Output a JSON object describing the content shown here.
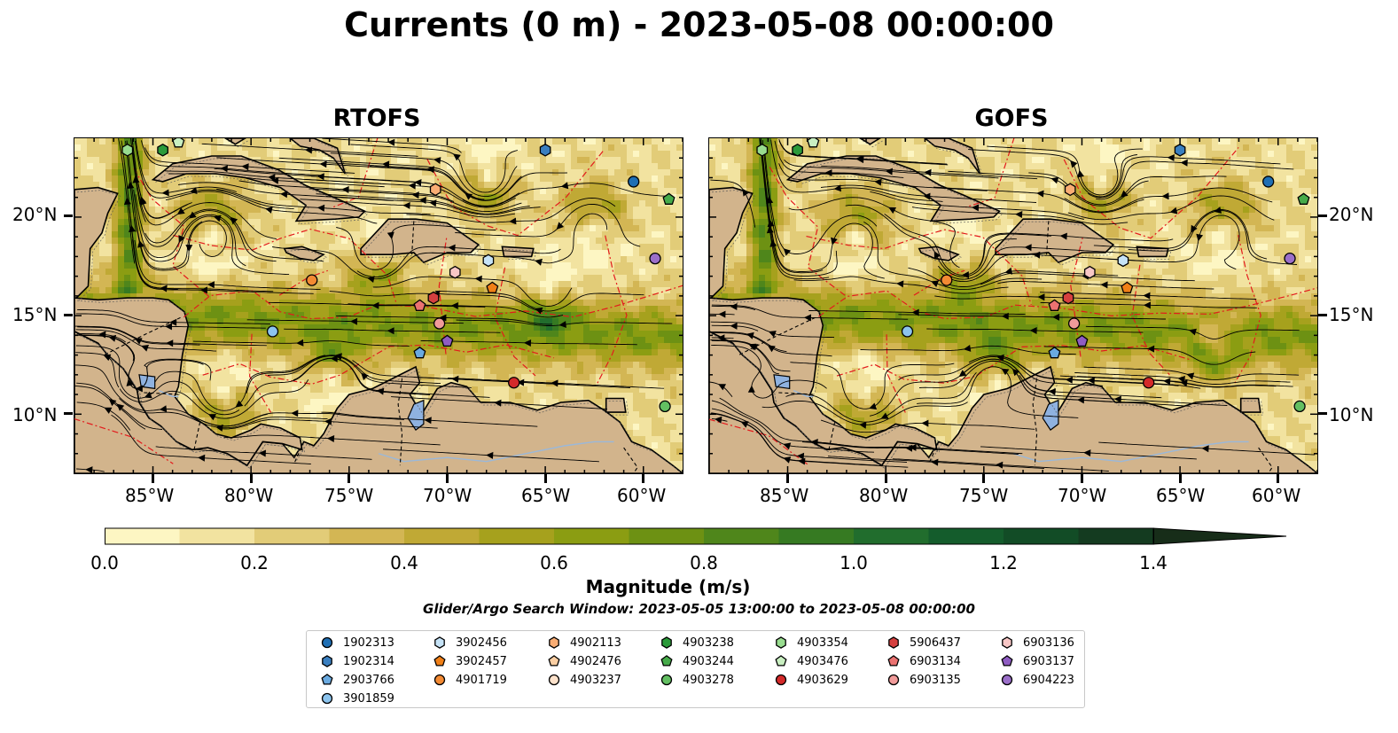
{
  "title": "Currents (0 m) - 2023-05-08 00:00:00",
  "panels": [
    {
      "title": "RTOFS"
    },
    {
      "title": "GOFS"
    }
  ],
  "lat_labels": [
    "20°N",
    "15°N",
    "10°N"
  ],
  "lon_labels": [
    "85°W",
    "80°W",
    "75°W",
    "70°W",
    "65°W",
    "60°W"
  ],
  "colorbar": {
    "label": "Magnitude (m/s)",
    "min": 0.0,
    "max": 1.5,
    "extend": "max",
    "ticks": [
      "0.0",
      "0.2",
      "0.4",
      "0.6",
      "0.8",
      "1.0",
      "1.2",
      "1.4"
    ],
    "colors": [
      "#fdf6c3",
      "#f2e3a0",
      "#e2cc78",
      "#d3b654",
      "#c0a935",
      "#a6a11d",
      "#8b9d12",
      "#6d9113",
      "#4f861b",
      "#367a22",
      "#216d2d",
      "#145c2c",
      "#124c26",
      "#143b20",
      "#172d19"
    ]
  },
  "subtitle": "Glider/Argo Search Window: 2023-05-05 13:00:00 to 2023-05-08 00:00:00",
  "legend": [
    {
      "id": "1902313",
      "shape": "circle",
      "color": "#1f6fb4"
    },
    {
      "id": "1902314",
      "shape": "hexagon",
      "color": "#3a7fc0"
    },
    {
      "id": "2903766",
      "shape": "pentagon",
      "color": "#6aaae0"
    },
    {
      "id": "3901859",
      "shape": "circle",
      "color": "#8cc4ee"
    },
    {
      "id": "3902456",
      "shape": "hexagon",
      "color": "#c6e3f7"
    },
    {
      "id": "3902457",
      "shape": "pentagon",
      "color": "#f07f17"
    },
    {
      "id": "4901719",
      "shape": "circle",
      "color": "#f38a33"
    },
    {
      "id": "4902113",
      "shape": "hexagon",
      "color": "#f9ad74"
    },
    {
      "id": "4902476",
      "shape": "pentagon",
      "color": "#fbcfa3"
    },
    {
      "id": "4903237",
      "shape": "circle",
      "color": "#fde2cb"
    },
    {
      "id": "4903238",
      "shape": "hexagon",
      "color": "#2b9a3a"
    },
    {
      "id": "4903244",
      "shape": "pentagon",
      "color": "#46ab4a"
    },
    {
      "id": "4903278",
      "shape": "circle",
      "color": "#63bf62"
    },
    {
      "id": "4903354",
      "shape": "hexagon",
      "color": "#98dc8f"
    },
    {
      "id": "4903476",
      "shape": "pentagon",
      "color": "#c9efc1"
    },
    {
      "id": "4903629",
      "shape": "circle",
      "color": "#d42a2a"
    },
    {
      "id": "5906437",
      "shape": "hexagon",
      "color": "#d6403f"
    },
    {
      "id": "6903134",
      "shape": "pentagon",
      "color": "#eb7271"
    },
    {
      "id": "6903135",
      "shape": "circle",
      "color": "#f19b9a"
    },
    {
      "id": "6903136",
      "shape": "hexagon",
      "color": "#f8c7c6"
    },
    {
      "id": "6903137",
      "shape": "pentagon",
      "color": "#8f5cc2"
    },
    {
      "id": "6904223",
      "shape": "circle",
      "color": "#9b6fc9"
    }
  ],
  "floats": [
    {
      "id": "4903354",
      "lon": -86.3,
      "lat": 23.4
    },
    {
      "id": "4903238",
      "lon": -84.5,
      "lat": 23.4
    },
    {
      "id": "4903476",
      "lon": -83.7,
      "lat": 23.8
    },
    {
      "id": "1902314",
      "lon": -65.0,
      "lat": 23.4
    },
    {
      "id": "1902313",
      "lon": -60.5,
      "lat": 21.8
    },
    {
      "id": "4903244",
      "lon": -58.7,
      "lat": 20.9
    },
    {
      "id": "4902113",
      "lon": -70.6,
      "lat": 21.4
    },
    {
      "id": "6904223",
      "lon": -59.4,
      "lat": 17.9
    },
    {
      "id": "3902456",
      "lon": -67.9,
      "lat": 17.8
    },
    {
      "id": "6903136",
      "lon": -69.6,
      "lat": 17.2
    },
    {
      "id": "4901719",
      "lon": -76.9,
      "lat": 16.8
    },
    {
      "id": "3902457",
      "lon": -67.7,
      "lat": 16.4
    },
    {
      "id": "5906437",
      "lon": -70.7,
      "lat": 15.9
    },
    {
      "id": "6903134",
      "lon": -71.4,
      "lat": 15.5
    },
    {
      "id": "6903135",
      "lon": -70.4,
      "lat": 14.6
    },
    {
      "id": "3901859",
      "lon": -78.9,
      "lat": 14.2
    },
    {
      "id": "6903137",
      "lon": -70.0,
      "lat": 13.7
    },
    {
      "id": "2903766",
      "lon": -71.4,
      "lat": 13.1
    },
    {
      "id": "4903629",
      "lon": -66.6,
      "lat": 11.6
    },
    {
      "id": "4903278",
      "lon": -58.9,
      "lat": 10.4
    }
  ]
}
